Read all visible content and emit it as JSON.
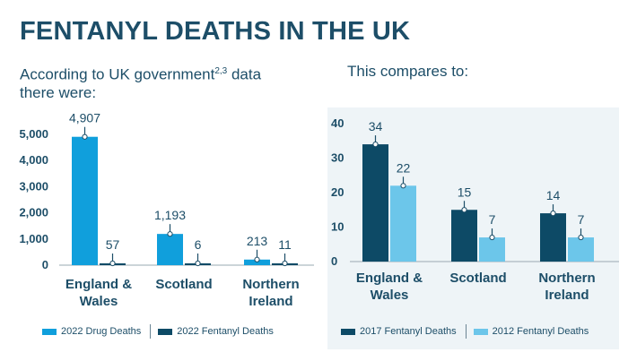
{
  "title": "FENTANYL DEATHS IN THE UK",
  "left": {
    "subtitle_pre": "According to UK government",
    "subtitle_sup": "2,3",
    "subtitle_post": " data",
    "subtitle_line2": "there were:"
  },
  "right": {
    "subtitle": "This compares to:"
  },
  "colors": {
    "title": "#1d4e68",
    "drug_2022": "#109fdc",
    "fent_2022": "#0d4a66",
    "fent_2017": "#0d4a66",
    "fent_2012": "#6cc6ea",
    "panel_bg": "#eef4f7"
  },
  "chart_data": [
    {
      "type": "bar",
      "categories": [
        "England &\nWales",
        "Scotland",
        "Northern\nIreland"
      ],
      "series": [
        {
          "name": "2022 Drug Deaths",
          "values": [
            4907,
            1193,
            213
          ],
          "labels": [
            "4,907",
            "1,193",
            "213"
          ],
          "color": "#109fdc"
        },
        {
          "name": "2022 Fentanyl Deaths",
          "values": [
            57,
            6,
            11
          ],
          "labels": [
            "57",
            "6",
            "11"
          ],
          "color": "#0d4a66"
        }
      ],
      "ylim": [
        0,
        5000
      ],
      "yticks": [
        0,
        1000,
        2000,
        3000,
        4000,
        5000
      ],
      "ytick_labels": [
        "0",
        "1,000",
        "2,000",
        "3,000",
        "4,000",
        "5,000"
      ],
      "legend": "bottom"
    },
    {
      "type": "bar",
      "categories": [
        "England &\nWales",
        "Scotland",
        "Northern\nIreland"
      ],
      "series": [
        {
          "name": "2017 Fentanyl Deaths",
          "values": [
            34,
            15,
            14
          ],
          "labels": [
            "34",
            "15",
            "14"
          ],
          "color": "#0d4a66"
        },
        {
          "name": "2012 Fentanyl Deaths",
          "values": [
            22,
            7,
            7
          ],
          "labels": [
            "22",
            "7",
            "7"
          ],
          "color": "#6cc6ea"
        }
      ],
      "ylim": [
        0,
        40
      ],
      "yticks": [
        0,
        10,
        20,
        30,
        40
      ],
      "ytick_labels": [
        "0",
        "10",
        "20",
        "30",
        "40"
      ],
      "legend": "bottom"
    }
  ]
}
